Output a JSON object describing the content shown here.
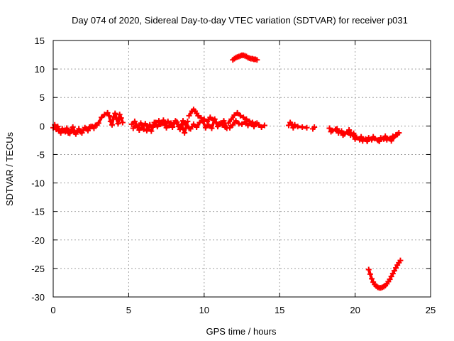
{
  "chart_data": {
    "type": "scatter",
    "title": "Day 074 of 2020, Sidereal Day-to-day VTEC variation (SDTVAR) for receiver p031",
    "xlabel": "GPS time / hours",
    "ylabel": "SDTVAR / TECUs",
    "xlim": [
      0,
      25
    ],
    "ylim": [
      -30,
      15
    ],
    "xticks": [
      0,
      5,
      10,
      15,
      20,
      25
    ],
    "yticks": [
      15,
      10,
      5,
      0,
      -5,
      -10,
      -15,
      -20,
      -25,
      -30
    ],
    "grid": true,
    "marker": "plus",
    "color": "#ff0000",
    "segments": [
      {
        "name": "trace-0.0-2.9h",
        "x": [
          0.0,
          0.2,
          0.4,
          0.6,
          0.8,
          1.0,
          1.2,
          1.4,
          1.6,
          1.8,
          2.0,
          2.2,
          2.4,
          2.6,
          2.8,
          2.9
        ],
        "y": [
          -0.3,
          -0.6,
          -0.9,
          -0.5,
          -1.0,
          -1.2,
          -0.6,
          -1.1,
          -0.9,
          -1.0,
          -0.7,
          -0.5,
          -0.2,
          -0.1,
          0.1,
          0.2
        ]
      },
      {
        "name": "trace-0.0-2.9h-spread",
        "x": [
          0.1,
          0.3,
          0.5,
          0.7,
          0.9,
          1.1,
          1.3,
          1.5,
          1.7,
          1.9,
          2.1,
          2.3,
          2.5,
          2.7
        ],
        "y": [
          0.2,
          -0.1,
          -1.2,
          -0.8,
          -0.4,
          -1.3,
          -0.2,
          -1.4,
          -0.5,
          -1.2,
          -0.3,
          -0.8,
          -0.1,
          -0.4
        ]
      },
      {
        "name": "trace-3.0-4.6h",
        "x": [
          3.0,
          3.2,
          3.4,
          3.6,
          3.7,
          3.8,
          3.9,
          4.0,
          4.1,
          4.2,
          4.3,
          4.4,
          4.5,
          4.6
        ],
        "y": [
          0.5,
          1.5,
          2.0,
          2.3,
          1.8,
          0.8,
          0.2,
          1.6,
          2.2,
          1.2,
          0.4,
          2.0,
          1.4,
          0.6
        ]
      },
      {
        "name": "trace-5.2-9.0h",
        "x": [
          5.2,
          5.4,
          5.6,
          5.8,
          6.0,
          6.2,
          6.4,
          6.6,
          6.8,
          7.0,
          7.2,
          7.4,
          7.6,
          7.8,
          8.0,
          8.2,
          8.4,
          8.6,
          8.8,
          9.0
        ],
        "y": [
          0.3,
          0.8,
          -0.2,
          0.5,
          -0.6,
          -0.8,
          0.2,
          -0.2,
          0.6,
          0.9,
          0.4,
          0.2,
          0.8,
          0.5,
          0.4,
          0.7,
          -0.6,
          0.9,
          0.2,
          -0.4
        ]
      },
      {
        "name": "trace-5.2-9.0h-spread",
        "x": [
          5.3,
          5.5,
          5.7,
          5.9,
          6.1,
          6.3,
          6.5,
          6.7,
          6.9,
          7.1,
          7.3,
          7.5,
          7.7,
          7.9,
          8.1,
          8.3,
          8.5,
          8.7,
          8.9
        ],
        "y": [
          -0.4,
          0.1,
          -0.7,
          -0.3,
          0.4,
          -0.5,
          -0.9,
          0.6,
          -0.1,
          0.3,
          1.0,
          -0.3,
          0.1,
          -0.2,
          0.9,
          -0.1,
          0.3,
          -1.2,
          0.8
        ]
      },
      {
        "name": "trace-9.0-11.5h",
        "x": [
          9.0,
          9.2,
          9.3,
          9.4,
          9.5,
          9.6,
          9.8,
          10.0,
          10.2,
          10.4,
          10.6,
          10.8,
          11.0,
          11.2,
          11.4
        ],
        "y": [
          1.8,
          2.6,
          2.9,
          2.6,
          2.2,
          1.8,
          1.4,
          1.2,
          0.8,
          1.5,
          1.0,
          0.6,
          0.4,
          0.2,
          -0.2
        ]
      },
      {
        "name": "trace-9.0-11.5h-spread",
        "x": [
          9.1,
          9.3,
          9.5,
          9.7,
          9.9,
          10.1,
          10.3,
          10.5,
          10.7,
          10.9,
          11.1,
          11.3,
          11.5
        ],
        "y": [
          -0.5,
          0.3,
          -0.2,
          0.6,
          0.9,
          -0.3,
          0.2,
          -0.4,
          1.2,
          -0.1,
          0.5,
          0.9,
          -0.4
        ]
      },
      {
        "name": "trace-11.5-14.0h",
        "x": [
          11.6,
          11.8,
          12.0,
          12.2,
          12.4,
          12.6,
          12.8,
          13.0,
          13.2,
          13.4,
          13.6,
          13.8,
          14.0
        ],
        "y": [
          0.5,
          1.2,
          1.9,
          2.3,
          1.8,
          1.5,
          1.2,
          0.8,
          0.6,
          0.4,
          0.2,
          -0.2,
          0.1
        ]
      },
      {
        "name": "trace-11.5-14.0h-spread",
        "x": [
          11.7,
          11.9,
          12.1,
          12.3,
          12.5,
          12.7,
          12.9,
          13.1,
          13.3,
          13.5
        ],
        "y": [
          -0.3,
          0.2,
          0.9,
          0.4,
          0.3,
          0.7,
          0.1,
          0.4,
          -0.1,
          0.5
        ]
      },
      {
        "name": "high-arc-11.9-13.5h",
        "x": [
          11.9,
          12.0,
          12.1,
          12.2,
          12.3,
          12.4,
          12.5,
          12.6,
          12.7,
          12.8,
          12.9,
          13.0,
          13.1,
          13.2,
          13.3,
          13.4,
          13.5
        ],
        "y": [
          11.6,
          11.8,
          12.0,
          12.1,
          12.2,
          12.3,
          12.4,
          12.4,
          12.3,
          12.2,
          12.0,
          11.9,
          11.8,
          11.8,
          11.7,
          11.7,
          11.6
        ]
      },
      {
        "name": "trace-15.5-17.0h",
        "x": [
          15.6,
          15.7,
          15.8,
          15.9,
          16.0,
          16.2,
          16.5,
          16.8
        ],
        "y": [
          0.1,
          0.6,
          0.3,
          -0.3,
          0.2,
          -0.1,
          -0.2,
          -0.3
        ]
      },
      {
        "name": "trace-17.2h",
        "x": [
          17.2,
          17.3
        ],
        "y": [
          -0.5,
          -0.2
        ]
      },
      {
        "name": "trace-18.3-23.0h",
        "x": [
          18.3,
          18.5,
          18.7,
          18.9,
          19.1,
          19.3,
          19.5,
          19.7,
          19.9,
          20.1,
          20.3,
          20.5,
          20.7,
          20.9,
          21.1,
          21.3,
          21.5,
          21.7,
          21.9,
          22.1,
          22.3,
          22.5,
          22.7,
          22.9
        ],
        "y": [
          -0.4,
          -0.8,
          -0.6,
          -1.2,
          -0.9,
          -1.4,
          -1.1,
          -1.6,
          -1.3,
          -2.0,
          -2.4,
          -2.6,
          -2.3,
          -2.1,
          -2.4,
          -2.2,
          -2.5,
          -2.1,
          -2.3,
          -2.4,
          -2.2,
          -1.8,
          -1.6,
          -1.2
        ]
      },
      {
        "name": "trace-18.3-23.0h-spread",
        "x": [
          18.4,
          18.8,
          19.2,
          19.6,
          20.0,
          20.4,
          20.8,
          21.2,
          21.6,
          22.0,
          22.4,
          22.8
        ],
        "y": [
          -1.0,
          -0.5,
          -1.6,
          -0.7,
          -2.3,
          -1.9,
          -2.7,
          -1.9,
          -2.7,
          -1.8,
          -2.6,
          -1.5
        ]
      },
      {
        "name": "low-arc-20.9-23.0h",
        "x": [
          20.9,
          21.0,
          21.1,
          21.2,
          21.3,
          21.4,
          21.5,
          21.6,
          21.7,
          21.8,
          21.9,
          22.0,
          22.1,
          22.2,
          22.3,
          22.4,
          22.5,
          22.6,
          22.7,
          22.8,
          22.9,
          23.0
        ],
        "y": [
          -25.2,
          -26.0,
          -26.8,
          -27.4,
          -27.8,
          -28.1,
          -28.3,
          -28.4,
          -28.4,
          -28.3,
          -28.2,
          -28.0,
          -27.7,
          -27.3,
          -26.9,
          -26.4,
          -25.9,
          -25.4,
          -24.9,
          -24.4,
          -24.0,
          -23.6
        ]
      }
    ]
  }
}
